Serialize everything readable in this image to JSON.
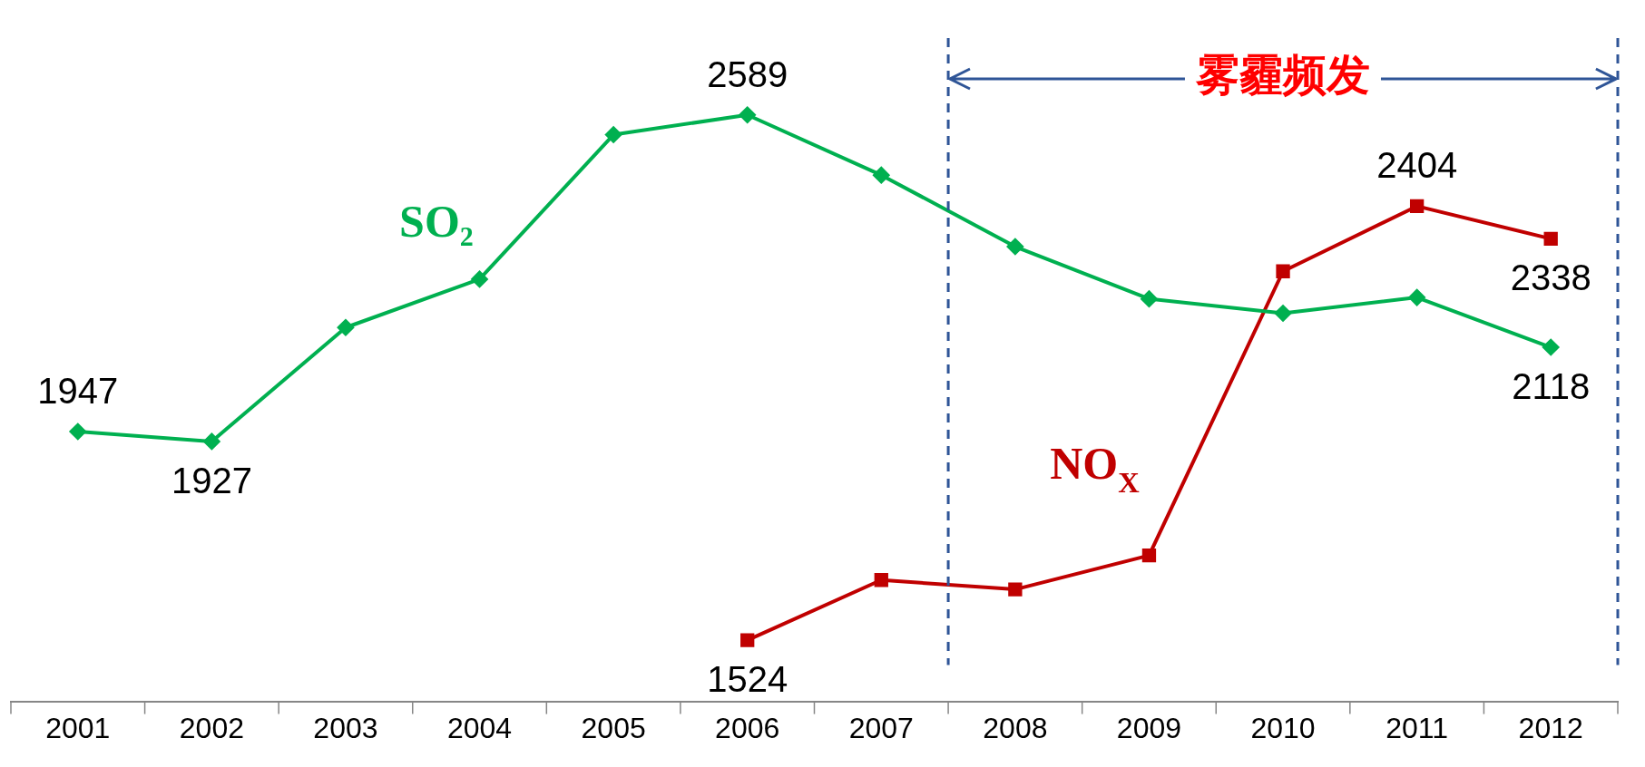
{
  "chart_data": {
    "type": "line",
    "series": [
      {
        "name": "SO₂",
        "color": "#00b050",
        "marker": "diamond",
        "x": [
          2001,
          2002,
          2003,
          2004,
          2005,
          2006,
          2007,
          2008,
          2009,
          2010,
          2011,
          2012
        ],
        "values": [
          1947,
          1927,
          2158,
          2256,
          2549,
          2589,
          2467,
          2322,
          2216,
          2187,
          2219,
          2118
        ],
        "value_labels": [
          "1947",
          "1927",
          null,
          null,
          null,
          "2589",
          null,
          null,
          null,
          null,
          null,
          "2118"
        ]
      },
      {
        "name": "NO$_{X}$",
        "color": "#c00000",
        "marker": "square",
        "x": [
          2006,
          2007,
          2008,
          2009,
          2010,
          2011,
          2012
        ],
        "values": [
          1524,
          1646,
          1627,
          1696,
          2272,
          2404,
          2338
        ],
        "value_labels": [
          "1524",
          null,
          null,
          null,
          null,
          "2404",
          "2338"
        ]
      }
    ],
    "xlim": [
      2000.5,
      2012.5
    ],
    "xticks": [
      2001,
      2002,
      2003,
      2004,
      2005,
      2006,
      2007,
      2008,
      2009,
      2010,
      2011,
      2012
    ],
    "tick_labels": "x",
    "grid": false,
    "legend": false,
    "line_style": "solid",
    "ref_lines": [
      {
        "axis": "x",
        "value": 2007.5,
        "color": "#2f5597",
        "line_style": "dashed"
      },
      {
        "axis": "x",
        "value": 2012.5,
        "color": "#2f5597",
        "line_style": "dashed"
      }
    ],
    "annotations": [
      "雾霾频发"
    ]
  }
}
